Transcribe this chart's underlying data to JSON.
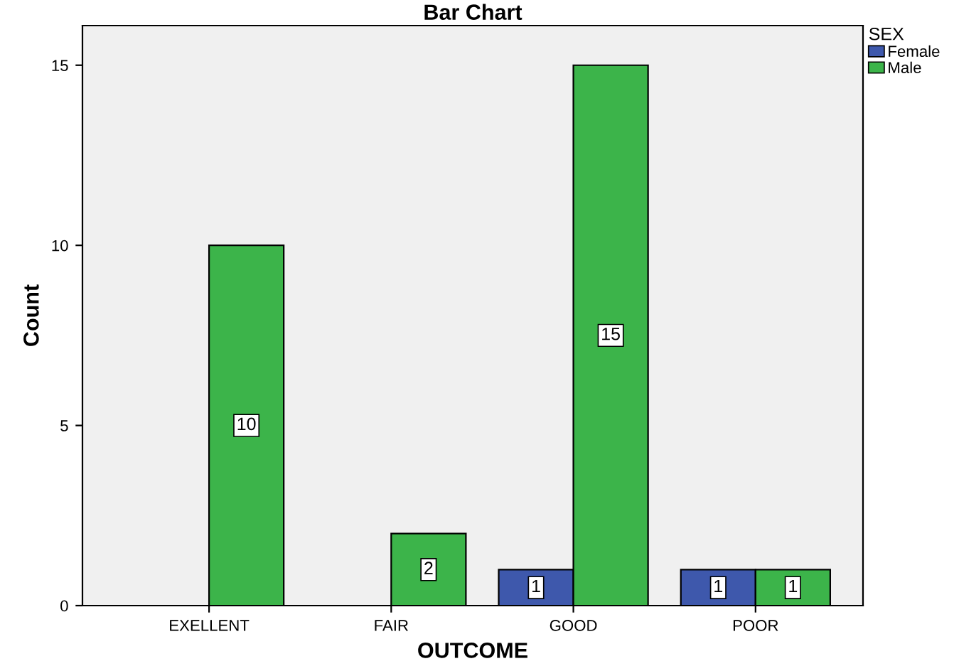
{
  "chart_data": {
    "type": "bar",
    "title": "Bar Chart",
    "xlabel": "OUTCOME",
    "ylabel": "Count",
    "legend_title": "SEX",
    "categories": [
      "EXELLENT",
      "FAIR",
      "GOOD",
      "POOR"
    ],
    "series": [
      {
        "name": "Female",
        "color": "#3e58ac",
        "values": [
          null,
          null,
          1,
          1
        ]
      },
      {
        "name": "Male",
        "color": "#3cb44a",
        "values": [
          10,
          2,
          15,
          1
        ]
      }
    ],
    "ylim": [
      0,
      16.1
    ],
    "yticks": [
      0,
      5,
      10,
      15
    ],
    "data_labels": true,
    "legend": "top right",
    "grid": false
  }
}
